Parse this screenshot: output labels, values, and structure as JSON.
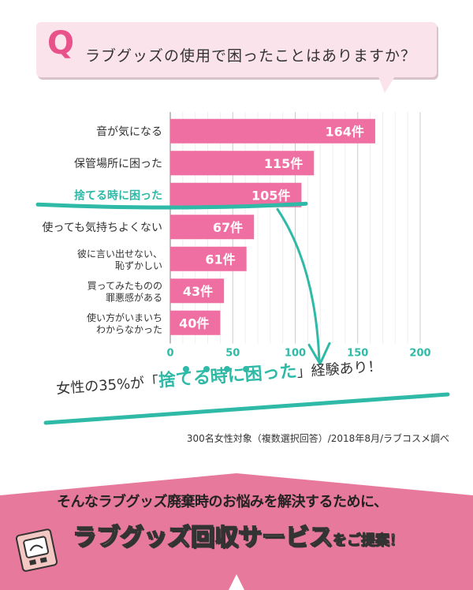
{
  "header": {
    "q_letter": "Q",
    "question": "ラブグッズの使用で困ったことはありますか？"
  },
  "chart_data": {
    "type": "bar",
    "orientation": "horizontal",
    "categories": [
      [
        "音が気になる"
      ],
      [
        "保管場所に困った"
      ],
      [
        "捨てる時に困った"
      ],
      [
        "使っても気持ちよくない"
      ],
      [
        "彼に言い出せない、",
        "恥ずかしい"
      ],
      [
        "買ってみたものの",
        "罪悪感がある"
      ],
      [
        "使い方がいまいち",
        "わからなかった"
      ]
    ],
    "values": [
      164,
      115,
      105,
      67,
      61,
      43,
      40
    ],
    "value_labels": [
      "164件",
      "115件",
      "105件",
      "67件",
      "61件",
      "43件",
      "40件"
    ],
    "highlight_index": 2,
    "x_ticks": [
      0,
      50,
      100,
      150,
      200
    ],
    "xlim": [
      0,
      200
    ],
    "grid": true,
    "colors": {
      "bar": "#f06fa3",
      "highlight": "#2fb9a7",
      "axis": "#2fb9a7"
    }
  },
  "conclusion": {
    "prefix": "女性の35%が「",
    "emphasis": "捨てる時に困った",
    "suffix": "」経験あり！"
  },
  "source": "300名女性対象（複数選択回答）/2018年8月/ラブコスメ調べ",
  "promo": {
    "line1": "そんなラブグッズ廃棄時のお悩みを解決するために、",
    "service": "ラブグッズ回収サービス",
    "suffix": "をご提案！",
    "icon": "box-icon"
  }
}
